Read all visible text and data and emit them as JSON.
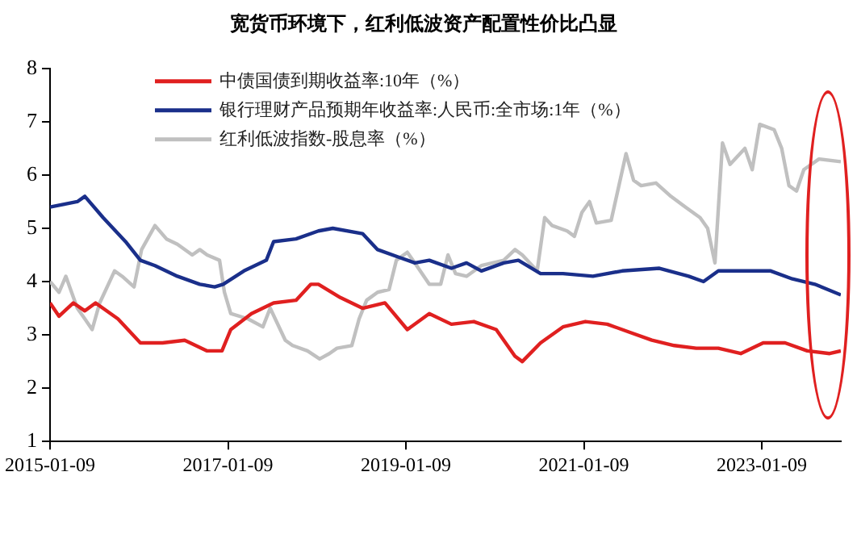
{
  "chart_data": {
    "type": "line",
    "title": "宽货币环境下，红利低波资产配置性价比凸显",
    "legend": "top",
    "grid": false,
    "marker": "none",
    "line_style": "solid",
    "xlim": [
      "2015-01-09",
      "2023-11-30"
    ],
    "xticks": [
      "2015-01-09",
      "2017-01-09",
      "2019-01-09",
      "2021-01-09",
      "2023-01-09"
    ],
    "ylim": [
      1,
      8
    ],
    "yticks": [
      1,
      2,
      3,
      4,
      5,
      6,
      7,
      8
    ],
    "series": [
      {
        "name": "中债国债到期收益率:10年（%）",
        "color": "#e02020",
        "x": [
          "2015-01-09",
          "2015-02-15",
          "2015-04-15",
          "2015-06-01",
          "2015-07-15",
          "2015-10-15",
          "2016-01-15",
          "2016-04-15",
          "2016-07-15",
          "2016-10-15",
          "2016-12-15",
          "2017-01-20",
          "2017-04-15",
          "2017-07-15",
          "2017-10-15",
          "2017-12-15",
          "2018-01-15",
          "2018-04-15",
          "2018-07-15",
          "2018-10-15",
          "2019-01-15",
          "2019-04-15",
          "2019-07-15",
          "2019-10-15",
          "2020-01-15",
          "2020-04-01",
          "2020-05-01",
          "2020-07-15",
          "2020-10-15",
          "2021-01-15",
          "2021-04-15",
          "2021-07-15",
          "2021-10-15",
          "2022-01-15",
          "2022-04-15",
          "2022-07-15",
          "2022-10-15",
          "2023-01-15",
          "2023-04-15",
          "2023-07-15",
          "2023-10-15",
          "2023-11-30"
        ],
        "values": [
          3.6,
          3.35,
          3.6,
          3.45,
          3.6,
          3.3,
          2.85,
          2.85,
          2.9,
          2.7,
          2.7,
          3.1,
          3.4,
          3.6,
          3.65,
          3.95,
          3.95,
          3.7,
          3.5,
          3.6,
          3.1,
          3.4,
          3.2,
          3.25,
          3.1,
          2.6,
          2.5,
          2.85,
          3.15,
          3.25,
          3.2,
          3.05,
          2.9,
          2.8,
          2.75,
          2.75,
          2.65,
          2.85,
          2.85,
          2.7,
          2.65,
          2.7
        ]
      },
      {
        "name": "银行理财产品预期年收益率:人民币:全市场:1年（%）",
        "color": "#1a2f8a",
        "x": [
          "2015-01-09",
          "2015-05-01",
          "2015-06-01",
          "2015-08-15",
          "2015-11-15",
          "2016-01-15",
          "2016-03-15",
          "2016-06-15",
          "2016-09-15",
          "2016-11-15",
          "2016-12-20",
          "2017-03-15",
          "2017-06-15",
          "2017-07-15",
          "2017-10-15",
          "2018-01-15",
          "2018-03-15",
          "2018-07-15",
          "2018-09-15",
          "2018-12-15",
          "2019-02-15",
          "2019-04-15",
          "2019-07-15",
          "2019-09-15",
          "2019-11-15",
          "2020-02-15",
          "2020-04-15",
          "2020-07-15",
          "2020-10-15",
          "2021-02-15",
          "2021-06-15",
          "2021-11-15",
          "2022-03-15",
          "2022-05-15",
          "2022-07-15",
          "2022-10-15",
          "2023-02-15",
          "2023-05-15",
          "2023-08-15",
          "2023-11-30"
        ],
        "values": [
          5.4,
          5.5,
          5.6,
          5.2,
          4.75,
          4.4,
          4.3,
          4.1,
          3.95,
          3.9,
          3.95,
          4.2,
          4.4,
          4.75,
          4.8,
          4.95,
          5.0,
          4.9,
          4.6,
          4.45,
          4.35,
          4.4,
          4.25,
          4.35,
          4.2,
          4.35,
          4.4,
          4.15,
          4.15,
          4.1,
          4.2,
          4.25,
          4.1,
          4.0,
          4.2,
          4.2,
          4.2,
          4.05,
          3.95,
          3.75
        ]
      },
      {
        "name": "红利低波指数-股息率（%）",
        "color": "#c0c0c0",
        "x": [
          "2015-01-09",
          "2015-02-15",
          "2015-03-15",
          "2015-05-01",
          "2015-06-01",
          "2015-07-01",
          "2015-08-01",
          "2015-10-01",
          "2015-11-01",
          "2015-12-20",
          "2016-01-20",
          "2016-03-15",
          "2016-05-01",
          "2016-06-15",
          "2016-08-15",
          "2016-09-15",
          "2016-10-15",
          "2016-12-05",
          "2016-12-25",
          "2017-01-20",
          "2017-04-01",
          "2017-06-01",
          "2017-07-01",
          "2017-09-01",
          "2017-10-01",
          "2017-12-01",
          "2018-01-20",
          "2018-03-01",
          "2018-04-01",
          "2018-06-01",
          "2018-07-01",
          "2018-08-01",
          "2018-09-15",
          "2018-11-01",
          "2018-12-01",
          "2019-01-15",
          "2019-02-15",
          "2019-04-15",
          "2019-06-01",
          "2019-07-01",
          "2019-08-01",
          "2019-09-15",
          "2019-11-15",
          "2020-02-15",
          "2020-04-01",
          "2020-05-01",
          "2020-07-01",
          "2020-08-01",
          "2020-09-01",
          "2020-11-01",
          "2020-12-01",
          "2021-01-01",
          "2021-02-01",
          "2021-03-01",
          "2021-05-01",
          "2021-07-01",
          "2021-08-01",
          "2021-09-01",
          "2021-11-01",
          "2022-01-01",
          "2022-03-01",
          "2022-05-01",
          "2022-06-01",
          "2022-07-01",
          "2022-08-01",
          "2022-09-01",
          "2022-11-01",
          "2022-12-01",
          "2023-01-01",
          "2023-03-01",
          "2023-04-01",
          "2023-05-01",
          "2023-06-01",
          "2023-07-01",
          "2023-08-01",
          "2023-09-01",
          "2023-11-30"
        ],
        "values": [
          4.0,
          3.8,
          4.1,
          3.5,
          3.3,
          3.1,
          3.6,
          4.2,
          4.1,
          3.9,
          4.6,
          5.05,
          4.8,
          4.7,
          4.5,
          4.6,
          4.5,
          4.4,
          3.8,
          3.4,
          3.3,
          3.15,
          3.5,
          2.9,
          2.8,
          2.7,
          2.55,
          2.65,
          2.75,
          2.8,
          3.3,
          3.65,
          3.8,
          3.85,
          4.4,
          4.55,
          4.35,
          3.95,
          3.95,
          4.5,
          4.15,
          4.1,
          4.3,
          4.4,
          4.6,
          4.5,
          4.2,
          5.2,
          5.05,
          4.95,
          4.85,
          5.3,
          5.5,
          5.1,
          5.15,
          6.4,
          5.9,
          5.8,
          5.85,
          5.6,
          5.4,
          5.2,
          5.0,
          4.35,
          6.6,
          6.2,
          6.5,
          6.1,
          6.95,
          6.85,
          6.5,
          5.8,
          5.7,
          6.1,
          6.2,
          6.3,
          6.25
        ]
      }
    ]
  }
}
